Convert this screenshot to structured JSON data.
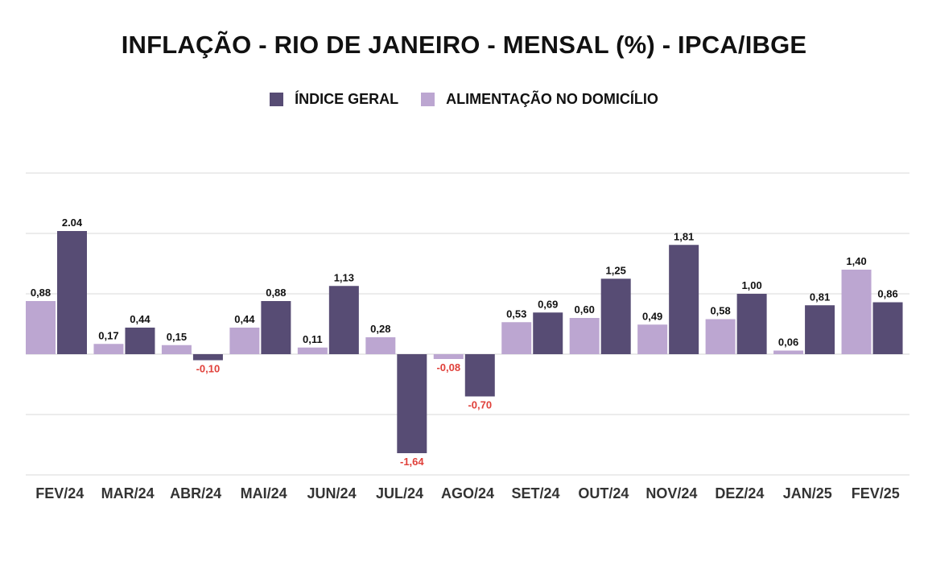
{
  "chart_data": {
    "type": "bar",
    "title": "INFLAÇÃO - RIO DE JANEIRO - MENSAL (%) - IPCA/IBGE",
    "categories": [
      "FEV/24",
      "MAR/24",
      "ABR/24",
      "MAI/24",
      "JUN/24",
      "JUL/24",
      "AGO/24",
      "SET/24",
      "OUT/24",
      "NOV/24",
      "DEZ/24",
      "JAN/25",
      "FEV/25"
    ],
    "series": [
      {
        "name": "ALIMENTAÇÃO NO DOMICÍLIO",
        "color": "#bca6d1",
        "values": [
          0.88,
          0.17,
          0.15,
          0.44,
          0.11,
          0.28,
          -0.08,
          0.53,
          0.6,
          0.49,
          0.58,
          0.06,
          1.4
        ],
        "labels": [
          "0,88",
          "0,17",
          "0,15",
          "0,44",
          "0,11",
          "0,28",
          "-0,08",
          "0,53",
          "0,60",
          "0,49",
          "0,58",
          "0,06",
          "1,40"
        ]
      },
      {
        "name": "ÍNDICE GERAL",
        "color": "#574c74",
        "values": [
          2.04,
          0.44,
          -0.1,
          0.88,
          1.13,
          -1.64,
          -0.7,
          0.69,
          1.25,
          1.81,
          1.0,
          0.81,
          0.86
        ],
        "labels": [
          "2.04",
          "0,44",
          "-0,10",
          "0,88",
          "1,13",
          "-1,64",
          "-0,70",
          "0,69",
          "1,25",
          "1,81",
          "1,00",
          "0,81",
          "0,86"
        ]
      }
    ],
    "legend_order": [
      "ÍNDICE GERAL",
      "ALIMENTAÇÃO NO DOMICÍLIO"
    ],
    "legend_position": "top-center",
    "ylim": [
      -2.0,
      3.0
    ],
    "gridlines": [
      -2,
      -1,
      0,
      1,
      2,
      3
    ],
    "grid": true,
    "positive_label_color": "#111111",
    "negative_label_color": "#e0403a",
    "xlabel": "",
    "ylabel": ""
  }
}
